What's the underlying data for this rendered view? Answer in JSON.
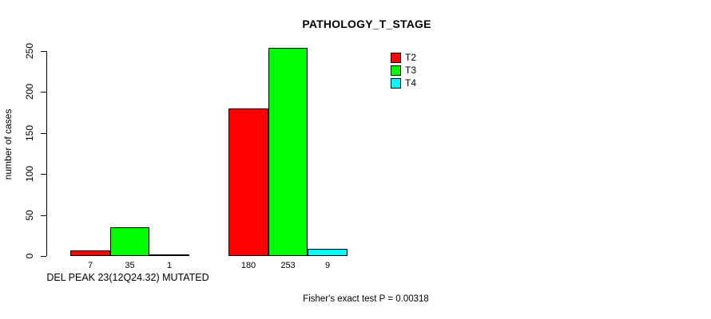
{
  "chart_data": {
    "type": "bar",
    "title": "PATHOLOGY_T_STAGE",
    "ylabel": "number of cases",
    "xlabel": "DEL PEAK 23(12Q24.32) MUTATED",
    "annotation": "Fisher's exact test P = 0.00318",
    "ylim": [
      0,
      250
    ],
    "yticks": [
      0,
      50,
      100,
      150,
      200,
      250
    ],
    "grid": false,
    "legend_position": "top-right",
    "group_count": 2,
    "series": [
      {
        "name": "T2",
        "color": "#ff0000",
        "values": [
          7,
          180
        ]
      },
      {
        "name": "T3",
        "color": "#00ff00",
        "values": [
          35,
          253
        ]
      },
      {
        "name": "T4",
        "color": "#00ffff",
        "values": [
          1,
          9
        ]
      }
    ]
  }
}
